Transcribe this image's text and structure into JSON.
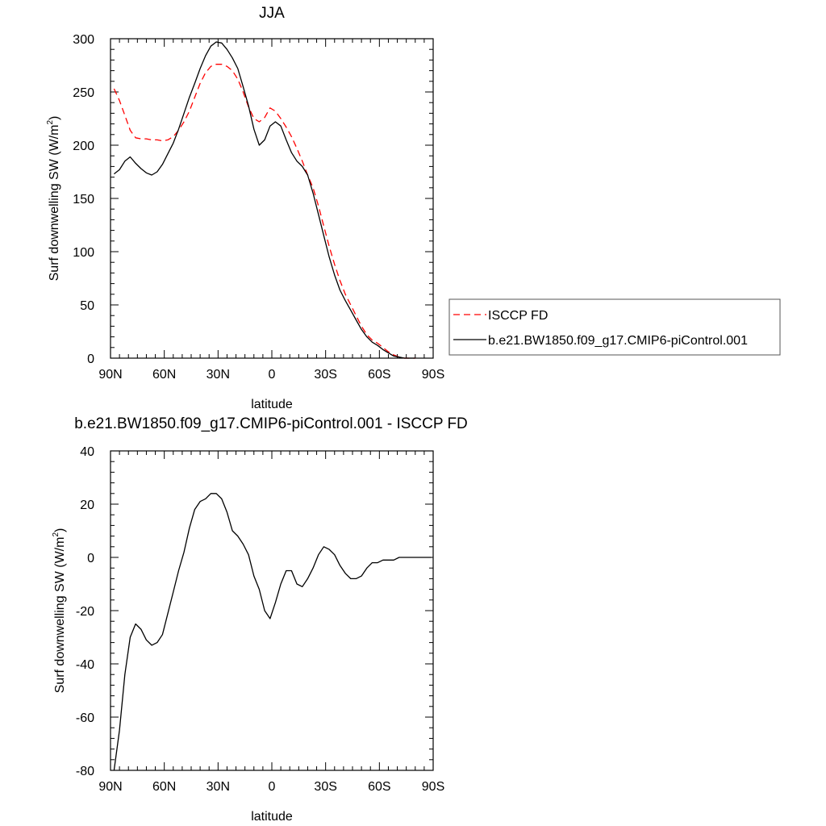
{
  "colors": {
    "obs": "#ff0000",
    "model": "#000000",
    "axis": "#000000"
  },
  "chart_data": [
    {
      "type": "line",
      "title": "JJA",
      "xlabel": "latitude",
      "ylabel_main": "Surf downwelling SW (W/m",
      "ylabel_sup": "2",
      "ylabel_close": ")",
      "xlim": [
        90,
        -90
      ],
      "ylim": [
        0,
        300
      ],
      "xticks": [
        {
          "value": 90,
          "label": "90N"
        },
        {
          "value": 60,
          "label": "60N"
        },
        {
          "value": 30,
          "label": "30N"
        },
        {
          "value": 0,
          "label": "0"
        },
        {
          "value": -30,
          "label": "30S"
        },
        {
          "value": -60,
          "label": "60S"
        },
        {
          "value": -90,
          "label": "90S"
        }
      ],
      "yticks": [
        {
          "value": 0,
          "label": "0"
        },
        {
          "value": 50,
          "label": "50"
        },
        {
          "value": 100,
          "label": "100"
        },
        {
          "value": 150,
          "label": "150"
        },
        {
          "value": 200,
          "label": "200"
        },
        {
          "value": 250,
          "label": "250"
        },
        {
          "value": 300,
          "label": "300"
        }
      ],
      "legend_position": "right",
      "series": [
        {
          "name": "ISCCP FD",
          "style": "dashed",
          "color": "#ff0000",
          "x": [
            88,
            85,
            82,
            79,
            76,
            73,
            70,
            67,
            64,
            61,
            58,
            55,
            52,
            49,
            46,
            43,
            40,
            37,
            34,
            31,
            28,
            25,
            22,
            19,
            16,
            13,
            10,
            7,
            4,
            1,
            -2,
            -5,
            -8,
            -11,
            -14,
            -17,
            -20,
            -23,
            -26,
            -29,
            -32,
            -35,
            -38,
            -41,
            -44,
            -47,
            -50,
            -53,
            -56,
            -59,
            -62,
            -65,
            -68,
            -71,
            -74,
            -77,
            -80
          ],
          "y": [
            253,
            242,
            228,
            214,
            207,
            206,
            206,
            205,
            205,
            204,
            205,
            208,
            214,
            222,
            232,
            245,
            258,
            268,
            274,
            276,
            276,
            274,
            270,
            262,
            250,
            236,
            225,
            222,
            226,
            235,
            232,
            225,
            217,
            208,
            197,
            185,
            172,
            160,
            143,
            124,
            105,
            88,
            73,
            60,
            50,
            40,
            30,
            22,
            17,
            14,
            10,
            6,
            3,
            1,
            0,
            0,
            0
          ]
        },
        {
          "name": "b.e21.BW1850.f09_g17.CMIP6-piControl.001",
          "style": "solid",
          "color": "#000000",
          "x": [
            88,
            85,
            82,
            79,
            76,
            73,
            70,
            67,
            64,
            61,
            58,
            55,
            52,
            49,
            46,
            43,
            40,
            37,
            34,
            31,
            28,
            25,
            22,
            19,
            16,
            13,
            10,
            7,
            4,
            1,
            -2,
            -5,
            -8,
            -11,
            -14,
            -17,
            -20,
            -23,
            -26,
            -29,
            -32,
            -35,
            -38,
            -41,
            -44,
            -47,
            -50,
            -53,
            -56,
            -59,
            -62,
            -65,
            -68,
            -71,
            -74,
            -77,
            -80
          ],
          "y": [
            173,
            177,
            185,
            189,
            183,
            178,
            174,
            172,
            175,
            182,
            192,
            202,
            215,
            230,
            245,
            258,
            272,
            284,
            293,
            297,
            296,
            290,
            282,
            272,
            255,
            237,
            215,
            200,
            205,
            218,
            222,
            218,
            205,
            193,
            185,
            180,
            172,
            155,
            135,
            115,
            95,
            78,
            64,
            54,
            45,
            36,
            27,
            20,
            15,
            12,
            8,
            5,
            2,
            1,
            0,
            0,
            0
          ]
        }
      ]
    },
    {
      "type": "line",
      "title": "b.e21.BW1850.f09_g17.CMIP6-piControl.001 - ISCCP FD",
      "xlabel": "latitude",
      "ylabel_main": "Surf downwelling SW (W/m",
      "ylabel_sup": "2",
      "ylabel_close": ")",
      "xlim": [
        90,
        -90
      ],
      "ylim": [
        -80,
        40
      ],
      "xticks": [
        {
          "value": 90,
          "label": "90N"
        },
        {
          "value": 60,
          "label": "60N"
        },
        {
          "value": 30,
          "label": "30N"
        },
        {
          "value": 0,
          "label": "0"
        },
        {
          "value": -30,
          "label": "30S"
        },
        {
          "value": -60,
          "label": "60S"
        },
        {
          "value": -90,
          "label": "90S"
        }
      ],
      "yticks": [
        {
          "value": -80,
          "label": "-80"
        },
        {
          "value": -60,
          "label": "-60"
        },
        {
          "value": -40,
          "label": "-40"
        },
        {
          "value": -20,
          "label": "-20"
        },
        {
          "value": 0,
          "label": "0"
        },
        {
          "value": 20,
          "label": "20"
        },
        {
          "value": 40,
          "label": "40"
        }
      ],
      "series": [
        {
          "style": "solid",
          "color": "#000000",
          "x": [
            88,
            85,
            82,
            79,
            76,
            73,
            70,
            67,
            64,
            61,
            58,
            55,
            52,
            49,
            46,
            43,
            40,
            37,
            34,
            31,
            28,
            25,
            22,
            19,
            16,
            13,
            10,
            7,
            4,
            1,
            -2,
            -5,
            -8,
            -11,
            -14,
            -17,
            -20,
            -23,
            -26,
            -29,
            -32,
            -35,
            -38,
            -41,
            -44,
            -47,
            -50,
            -53,
            -56,
            -59,
            -62,
            -65,
            -68,
            -71,
            -74,
            -77,
            -80,
            -83,
            -86,
            -89
          ],
          "y": [
            -80,
            -65,
            -44,
            -30,
            -25,
            -27,
            -31,
            -33,
            -32,
            -29,
            -21,
            -13,
            -5,
            2,
            11,
            18,
            21,
            22,
            24,
            24,
            22,
            17,
            10,
            8,
            5,
            1,
            -7,
            -12,
            -20,
            -23,
            -17,
            -10,
            -5,
            -5,
            -10,
            -11,
            -8,
            -4,
            1,
            4,
            3,
            1,
            -3,
            -6,
            -8,
            -8,
            -7,
            -4,
            -2,
            -2,
            -1,
            -1,
            -1,
            0,
            0,
            0,
            0,
            0,
            0,
            0
          ]
        }
      ]
    }
  ]
}
